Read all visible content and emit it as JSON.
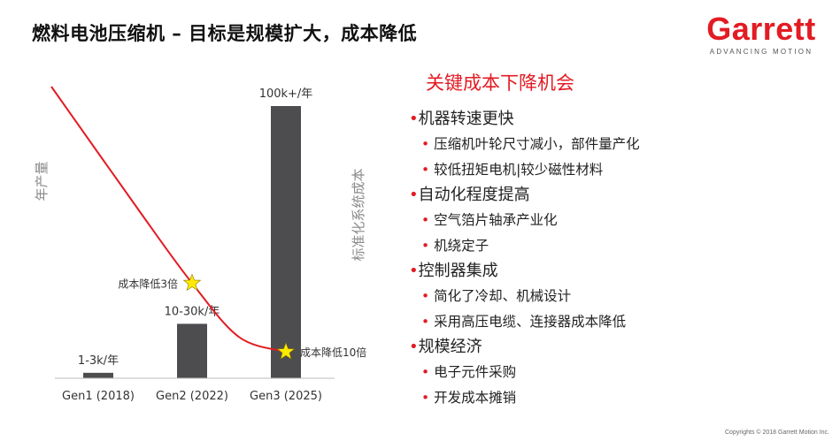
{
  "slide": {
    "title": "燃料电池压缩机 – 目标是规模扩大，成本降低",
    "copyright": "Copyrights © 2018 Garrett Motion Inc."
  },
  "logo": {
    "name": "Garrett",
    "tagline": "ADVANCING MOTION",
    "color": "#e31b23"
  },
  "chart_data": {
    "type": "bar",
    "categories": [
      "Gen1 (2018)",
      "Gen2 (2022)",
      "Gen3 (2025)"
    ],
    "values": [
      2,
      20,
      100
    ],
    "value_labels": [
      "1-3k/年",
      "10-30k/年",
      "100k+/年"
    ],
    "ylabel": "年产量",
    "y2label": "标准化系统成本",
    "bar_color": "#4d4d4f",
    "line_color": "#e31b23",
    "cost_curve": {
      "x": [
        -0.5,
        0.5,
        1.0,
        1.5,
        2.0
      ],
      "y": [
        1.0,
        0.55,
        0.333,
        0.15,
        0.1
      ]
    },
    "markers": [
      {
        "label": "成本降低3倍",
        "x": 1.0,
        "y": 0.333
      },
      {
        "label": "成本降低10倍",
        "x": 2.0,
        "y": 0.1
      }
    ],
    "grid": false,
    "legend": "none"
  },
  "bullets": {
    "heading": "关键成本下降机会",
    "items": [
      {
        "label": "机器转速更快",
        "subs": [
          "压缩机叶轮尺寸减小，部件量产化",
          "较低扭矩电机|较少磁性材料"
        ]
      },
      {
        "label": "自动化程度提高",
        "subs": [
          "空气箔片轴承产业化",
          "机绕定子"
        ]
      },
      {
        "label": "控制器集成",
        "subs": [
          "简化了冷却、机械设计",
          "采用高压电缆、连接器成本降低"
        ]
      },
      {
        "label": "规模经济",
        "subs": [
          "电子元件采购",
          "开发成本摊销"
        ]
      }
    ]
  }
}
